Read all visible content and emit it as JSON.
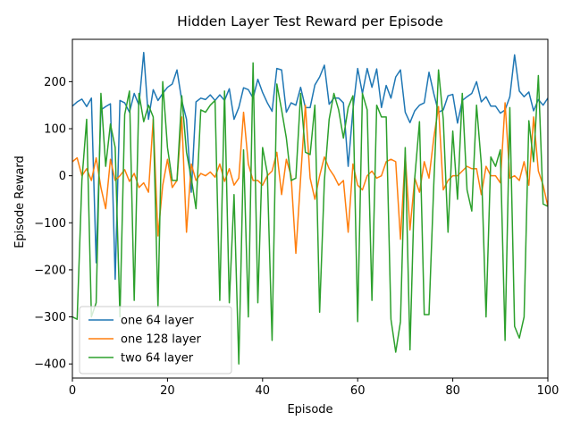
{
  "chart_data": {
    "type": "line",
    "title": "Hidden Layer Test Reward per Episode",
    "xlabel": "Episode",
    "ylabel": "Episode Reward",
    "xlim": [
      0,
      100
    ],
    "ylim": [
      -430,
      290
    ],
    "xticks": [
      "0",
      "20",
      "40",
      "60",
      "80",
      "100"
    ],
    "yticks": [
      "−400",
      "−300",
      "−200",
      "−100",
      "0",
      "100",
      "200"
    ],
    "legend_position": "lower-left",
    "grid": false,
    "series": [
      {
        "name": "one 64 layer",
        "color": "#1f77b4",
        "values": [
          148,
          157,
          163,
          147,
          165,
          -185,
          140,
          147,
          153,
          -220,
          160,
          155,
          135,
          175,
          150,
          262,
          120,
          183,
          160,
          175,
          188,
          195,
          225,
          160,
          120,
          -35,
          157,
          165,
          162,
          172,
          160,
          172,
          160,
          185,
          120,
          145,
          187,
          183,
          165,
          205,
          177,
          155,
          137,
          228,
          225,
          135,
          155,
          150,
          188,
          145,
          145,
          193,
          210,
          235,
          152,
          165,
          165,
          155,
          20,
          140,
          228,
          175,
          228,
          188,
          227,
          145,
          192,
          165,
          210,
          225,
          135,
          113,
          138,
          150,
          155,
          220,
          175,
          135,
          140,
          170,
          173,
          112,
          160,
          168,
          175,
          200,
          157,
          168,
          148,
          148,
          133,
          140,
          168,
          257,
          180,
          168,
          178,
          138,
          162,
          150,
          165
        ]
      },
      {
        "name": "one 128 layer",
        "color": "#ff7f0e",
        "values": [
          30,
          38,
          0,
          15,
          -10,
          38,
          -25,
          -70,
          35,
          -10,
          0,
          13,
          -12,
          5,
          -25,
          -15,
          -35,
          120,
          -128,
          -20,
          35,
          -25,
          -10,
          125,
          -120,
          25,
          -10,
          5,
          0,
          8,
          -3,
          25,
          -12,
          15,
          -20,
          -5,
          135,
          25,
          -10,
          -10,
          -20,
          0,
          10,
          50,
          -40,
          35,
          0,
          -165,
          -5,
          150,
          -5,
          -50,
          0,
          40,
          15,
          0,
          -20,
          -10,
          -120,
          25,
          -20,
          -30,
          0,
          10,
          -5,
          0,
          30,
          35,
          30,
          -135,
          45,
          -115,
          -5,
          -35,
          30,
          -5,
          80,
          147,
          -30,
          -10,
          0,
          0,
          10,
          20,
          15,
          15,
          -40,
          20,
          0,
          0,
          -15,
          155,
          -5,
          0,
          -10,
          30,
          -20,
          125,
          10,
          -20,
          -65
        ]
      },
      {
        "name": "two 64 layer",
        "color": "#2ca02c",
        "values": [
          -300,
          -305,
          -10,
          120,
          -300,
          -270,
          175,
          20,
          110,
          60,
          -300,
          130,
          180,
          -265,
          175,
          115,
          150,
          125,
          -280,
          200,
          60,
          -10,
          -10,
          170,
          50,
          -5,
          -70,
          140,
          135,
          150,
          160,
          -265,
          180,
          -270,
          -40,
          -400,
          55,
          -300,
          240,
          -270,
          60,
          5,
          -350,
          195,
          140,
          80,
          -10,
          -5,
          175,
          50,
          45,
          150,
          -290,
          -10,
          120,
          175,
          140,
          80,
          145,
          170,
          -310,
          175,
          140,
          -265,
          150,
          125,
          125,
          -305,
          -375,
          -310,
          60,
          -370,
          -5,
          115,
          -295,
          -295,
          -20,
          225,
          120,
          -120,
          95,
          -50,
          175,
          -30,
          -75,
          150,
          25,
          -300,
          40,
          20,
          55,
          -350,
          145,
          -320,
          -345,
          -300,
          117,
          30,
          213,
          -60,
          -65
        ]
      }
    ]
  }
}
